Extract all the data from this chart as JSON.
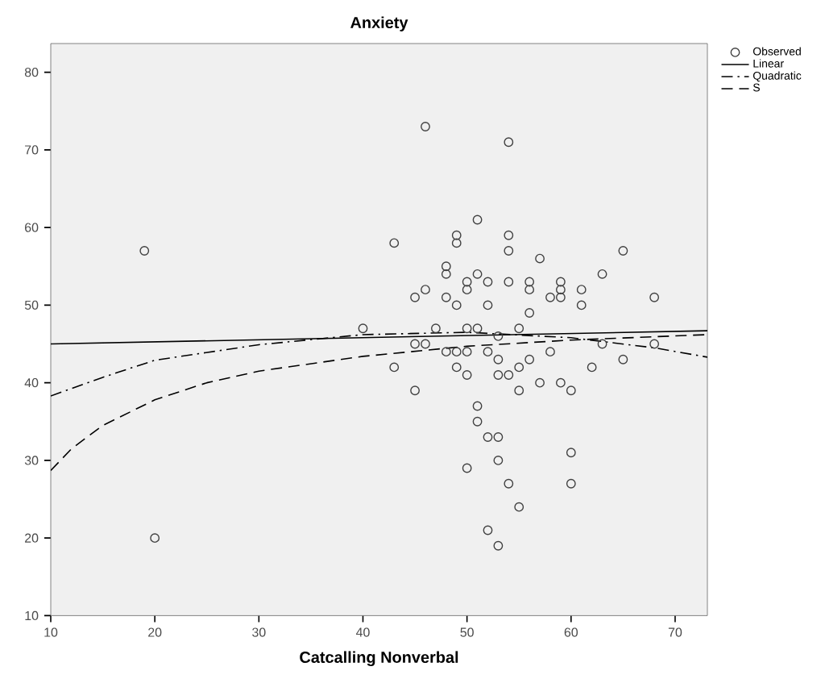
{
  "chart_data": {
    "type": "scatter",
    "title": "Anxiety",
    "xlabel": "Catcalling Nonverbal",
    "xlim": [
      10,
      73.1
    ],
    "ylim": [
      10,
      83.7
    ],
    "xticks": [
      10,
      20,
      30,
      40,
      50,
      60,
      70
    ],
    "yticks": [
      10,
      20,
      30,
      40,
      50,
      60,
      70,
      80
    ],
    "grid": false,
    "legend": "top right",
    "series": [
      {
        "name": "Observed",
        "marker": "circle",
        "color": "#404040",
        "x": [
          19,
          20,
          40,
          43,
          43,
          45,
          45,
          45,
          46,
          46,
          46,
          47,
          48,
          48,
          48,
          48,
          49,
          49,
          49,
          49,
          49,
          50,
          50,
          50,
          50,
          50,
          50,
          51,
          51,
          51,
          51,
          51,
          52,
          52,
          52,
          52,
          52,
          53,
          53,
          53,
          53,
          53,
          53,
          54,
          54,
          54,
          54,
          54,
          54,
          55,
          55,
          55,
          55,
          56,
          56,
          56,
          56,
          57,
          57,
          58,
          58,
          59,
          59,
          59,
          59,
          60,
          60,
          60,
          61,
          61,
          62,
          63,
          63,
          65,
          65,
          68,
          68
        ],
        "values": [
          57,
          20,
          47,
          58,
          42,
          51,
          45,
          39,
          73,
          52,
          45,
          47,
          55,
          54,
          51,
          44,
          59,
          58,
          50,
          44,
          42,
          53,
          52,
          47,
          44,
          41,
          29,
          61,
          54,
          47,
          37,
          35,
          53,
          50,
          44,
          33,
          21,
          46,
          43,
          41,
          33,
          30,
          19,
          71,
          59,
          57,
          53,
          41,
          27,
          47,
          42,
          39,
          24,
          53,
          52,
          49,
          43,
          56,
          40,
          51,
          44,
          53,
          52,
          51,
          40,
          39,
          31,
          27,
          52,
          50,
          42,
          54,
          45,
          57,
          43,
          51,
          45
        ]
      },
      {
        "name": "Linear",
        "type": "line",
        "marker": "none",
        "line_style": "solid",
        "color": "#000000",
        "x": [
          10,
          73.1
        ],
        "values": [
          45,
          46.7
        ]
      },
      {
        "name": "Quadratic",
        "type": "line",
        "marker": "none",
        "line_style": "dashdot",
        "color": "#000000",
        "x": [
          10,
          15,
          20,
          30,
          40,
          50,
          60,
          68,
          73.1
        ],
        "values": [
          38.3,
          40.7,
          42.9,
          44.9,
          46.2,
          46.5,
          45.8,
          44.5,
          43.3
        ]
      },
      {
        "name": "S",
        "type": "line",
        "marker": "none",
        "line_style": "dashed",
        "color": "#000000",
        "x": [
          10,
          12,
          15,
          20,
          25,
          30,
          40,
          50,
          60,
          73.1
        ],
        "values": [
          28.7,
          31.5,
          34.5,
          37.8,
          40.0,
          41.5,
          43.4,
          44.7,
          45.5,
          46.2
        ]
      }
    ]
  }
}
